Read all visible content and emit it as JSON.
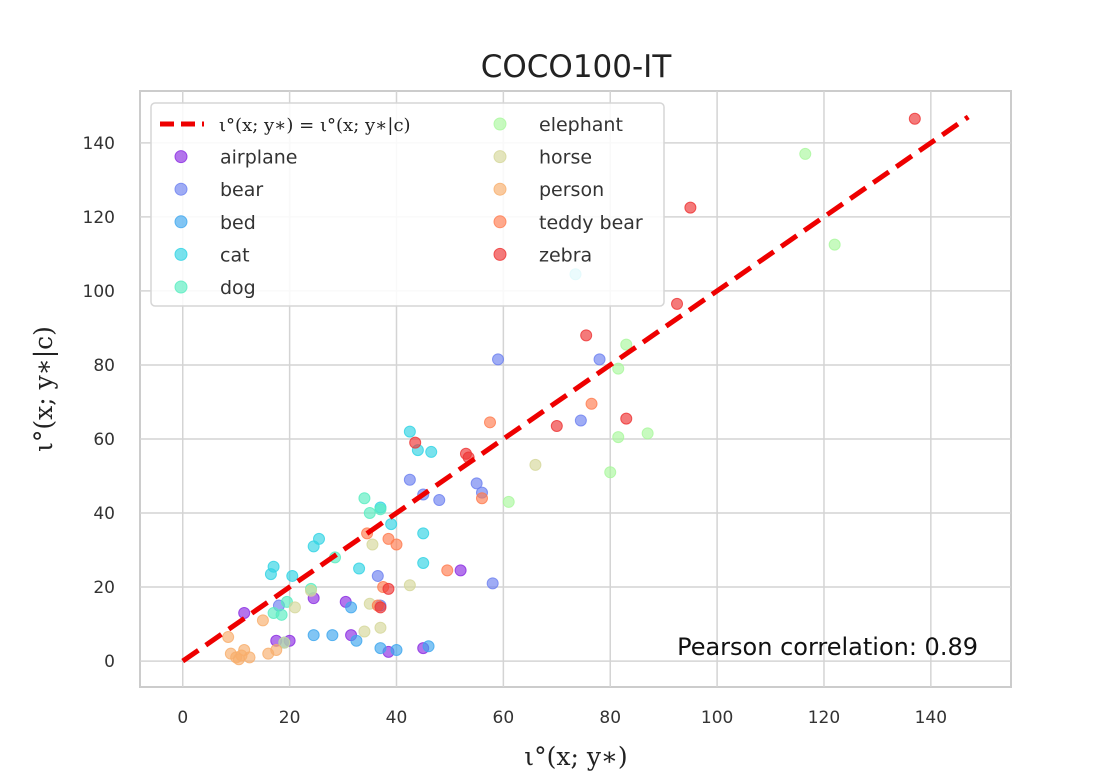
{
  "chart_data": {
    "type": "scatter",
    "title": "COCO100-IT",
    "xlabel": "ι°(x; y∗)",
    "ylabel": "ι°(x; y∗|c)",
    "xlim": [
      -8,
      155
    ],
    "ylim": [
      -7,
      154
    ],
    "xticks": [
      0,
      20,
      40,
      60,
      80,
      100,
      120,
      140
    ],
    "yticks": [
      0,
      20,
      40,
      60,
      80,
      100,
      120,
      140
    ],
    "grid": true,
    "legend_position": "top-left",
    "reference_line": {
      "label": "ι°(x; y∗) = ι°(x; y∗|c)",
      "x": [
        0,
        147
      ],
      "y": [
        0,
        147
      ],
      "color": "#ee0000"
    },
    "annotation": "Pearson correlation: 0.89",
    "series": [
      {
        "name": "airplane",
        "color": "#8a2be2",
        "points": [
          [
            11.5,
            13
          ],
          [
            17.5,
            5.5
          ],
          [
            20,
            5.5
          ],
          [
            24.5,
            17
          ],
          [
            30.5,
            16
          ],
          [
            31.5,
            7
          ],
          [
            38.5,
            2.5
          ],
          [
            45,
            3.5
          ],
          [
            52,
            24.5
          ]
        ]
      },
      {
        "name": "bear",
        "color": "#6c7ff0",
        "points": [
          [
            18,
            15
          ],
          [
            36.5,
            23
          ],
          [
            37,
            15
          ],
          [
            42.5,
            49
          ],
          [
            45,
            45
          ],
          [
            48,
            43.5
          ],
          [
            55,
            48
          ],
          [
            56,
            45.5
          ],
          [
            58,
            21
          ],
          [
            59,
            81.5
          ],
          [
            74.5,
            65
          ],
          [
            78,
            81.5
          ]
        ]
      },
      {
        "name": "bed",
        "color": "#3da6ee",
        "points": [
          [
            19,
            5
          ],
          [
            24.5,
            7
          ],
          [
            28,
            7
          ],
          [
            31.5,
            14.5
          ],
          [
            32.5,
            5.5
          ],
          [
            37,
            3.5
          ],
          [
            40,
            3
          ],
          [
            46,
            4
          ]
        ]
      },
      {
        "name": "cat",
        "color": "#2fd3e3",
        "points": [
          [
            16.5,
            23.5
          ],
          [
            17,
            25.5
          ],
          [
            20.5,
            23
          ],
          [
            24.5,
            31
          ],
          [
            25.5,
            33
          ],
          [
            33,
            25
          ],
          [
            37,
            41.5
          ],
          [
            39,
            37
          ],
          [
            42.5,
            62
          ],
          [
            44,
            57
          ],
          [
            45,
            34.5
          ],
          [
            45,
            26.5
          ],
          [
            46.5,
            56.5
          ],
          [
            73.5,
            104.5
          ]
        ]
      },
      {
        "name": "dog",
        "color": "#57ecc0",
        "points": [
          [
            17,
            13
          ],
          [
            18.5,
            12.5
          ],
          [
            19.5,
            16
          ],
          [
            24,
            19.5
          ],
          [
            28.5,
            28
          ],
          [
            34,
            44
          ],
          [
            35,
            40
          ],
          [
            37,
            41
          ]
        ]
      },
      {
        "name": "elephant",
        "color": "#a9f79c",
        "points": [
          [
            61,
            43
          ],
          [
            80,
            51
          ],
          [
            81.5,
            60.5
          ],
          [
            81.5,
            79
          ],
          [
            83,
            85.5
          ],
          [
            87,
            61.5
          ],
          [
            116.5,
            137
          ],
          [
            122,
            112.5
          ]
        ]
      },
      {
        "name": "horse",
        "color": "#d5d79a",
        "points": [
          [
            19,
            5
          ],
          [
            21,
            14.5
          ],
          [
            24,
            19
          ],
          [
            34,
            8
          ],
          [
            35,
            15.5
          ],
          [
            35.5,
            31.5
          ],
          [
            37,
            9
          ],
          [
            42.5,
            20.5
          ],
          [
            66,
            53
          ]
        ]
      },
      {
        "name": "person",
        "color": "#f8ae6c",
        "points": [
          [
            8.5,
            6.5
          ],
          [
            9,
            2
          ],
          [
            10,
            1
          ],
          [
            10.5,
            0.5
          ],
          [
            11,
            1.5
          ],
          [
            11.5,
            3
          ],
          [
            12.5,
            1
          ],
          [
            15,
            11
          ],
          [
            16,
            2
          ],
          [
            17.5,
            3
          ]
        ]
      },
      {
        "name": "teddy bear",
        "color": "#ff7b4e",
        "points": [
          [
            34.5,
            34.5
          ],
          [
            36.5,
            15
          ],
          [
            37.5,
            20
          ],
          [
            38.5,
            33
          ],
          [
            40,
            31.5
          ],
          [
            49.5,
            24.5
          ],
          [
            56,
            44
          ],
          [
            57.5,
            64.5
          ],
          [
            76.5,
            69.5
          ]
        ]
      },
      {
        "name": "zebra",
        "color": "#ee3333",
        "points": [
          [
            37,
            14.5
          ],
          [
            38.5,
            19.5
          ],
          [
            43.5,
            59
          ],
          [
            53,
            56
          ],
          [
            53.5,
            55
          ],
          [
            70,
            63.5
          ],
          [
            75.5,
            88
          ],
          [
            83,
            65.5
          ],
          [
            92.5,
            96.5
          ],
          [
            95,
            122.5
          ],
          [
            137,
            146.5
          ]
        ]
      }
    ]
  }
}
